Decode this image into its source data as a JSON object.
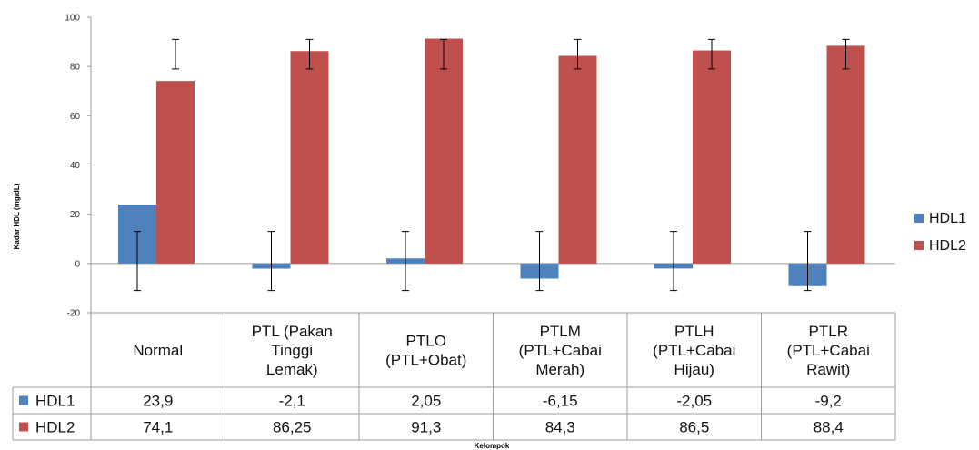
{
  "chart_data": {
    "type": "bar",
    "title": "",
    "ylabel": "Kadar HDL (mg/dL)",
    "xlabel": "Kelompok",
    "ylim": [
      -20,
      100
    ],
    "yticks": [
      -20,
      0,
      20,
      40,
      60,
      80,
      100
    ],
    "grid": false,
    "legend": "right",
    "categories": [
      [
        "Normal"
      ],
      [
        "PTL (Pakan",
        "Tinggi",
        "Lemak)"
      ],
      [
        "PTLO",
        "(PTL+Obat)"
      ],
      [
        "PTLM",
        "(PTL+Cabai",
        "Merah)"
      ],
      [
        "PTLH",
        "(PTL+Cabai",
        "Hijau)"
      ],
      [
        "PTLR",
        "(PTL+Cabai",
        "Rawit)"
      ]
    ],
    "series": [
      {
        "name": "HDL1",
        "color": "#4f81bd",
        "values": [
          23.9,
          -2.1,
          2.05,
          -6.15,
          -2.05,
          -9.2
        ],
        "labels": [
          "23,9",
          "-2,1",
          "2,05",
          "-6,15",
          "-2,05",
          "-9,2"
        ],
        "error_low": [
          -11,
          -11,
          -11,
          -11,
          -11,
          -11
        ],
        "error_high": [
          13,
          13,
          13,
          13,
          13,
          13
        ]
      },
      {
        "name": "HDL2",
        "color": "#c0504d",
        "values": [
          74.1,
          86.25,
          91.3,
          84.3,
          86.5,
          88.4
        ],
        "labels": [
          "74,1",
          "86,25",
          "91,3",
          "84,3",
          "86,5",
          "88,4"
        ],
        "error_low": [
          79,
          79,
          79,
          79,
          79,
          79
        ],
        "error_high": [
          91,
          91,
          91,
          91,
          91,
          91
        ]
      }
    ]
  }
}
